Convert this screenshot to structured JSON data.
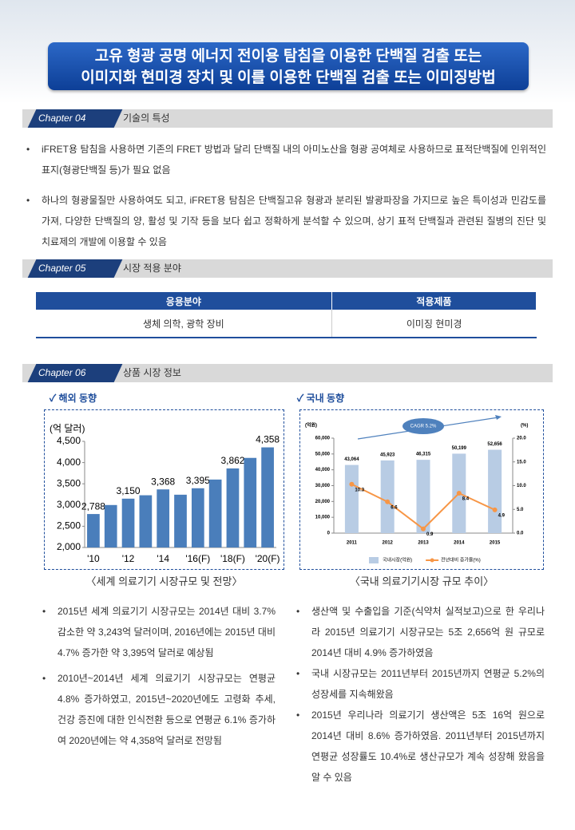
{
  "header": {
    "title_lines": [
      "고유 형광 공명 에너지 전이용 탐침을 이용한 단백질 검출 또는",
      "이미지화 현미경 장치 및 이를 이용한 단백질 검출 또는 이미징방법"
    ]
  },
  "sections": [
    {
      "chapter": "Chapter 04",
      "heading": "기술의 특성",
      "bullets": [
        "iFRET용 탐침을 사용하면 기존의 FRET 방법과 달리 단백질 내의 아미노산을 형광 공여체로 사용하므로 표적단백질에 인위적인 표지(형광단백질 등)가 필요 없음",
        "하나의 형광물질만 사용하여도 되고, iFRET용 탐침은 단백질고유 형광과 분리된 발광파장을 가지므로 높은 특이성과 민감도를 가져, 다양한 단백질의 양, 활성 및 기작 등을 보다 쉽고 정확하게 분석할 수 있으며, 상기 표적 단백질과 관련된 질병의 진단 및 치료제의 개발에 이용할 수 있음"
      ]
    },
    {
      "chapter": "Chapter 05",
      "heading": "시장 적용 분야",
      "table": {
        "headers": [
          "응용분야",
          "적용제품"
        ],
        "rows": [
          [
            "생체 의학, 광학 장비",
            "이미징 현미경"
          ]
        ]
      }
    },
    {
      "chapter": "Chapter 06",
      "heading": "상품 시장 정보",
      "overseas": {
        "label": "해외 동향",
        "caption": "〈세계 의료기기 시장규모 및 전망〉",
        "bullets": [
          "2015년 세계 의료기기 시장규모는 2014년 대비 3.7% 감소한 약 3,243억 달러이며, 2016년에는 2015년 대비 4.7% 증가한 약 3,395억 달러로 예상됨",
          "2010년~2014년 세계 의료기기 시장규모는 연평균 4.8% 증가하였고, 2015년~2020년에도 고령화 추세, 건강 증진에 대한 인식전환 등으로 연평균 6.1% 증가하여 2020년에는 약 4,358억 달러로 전망됨"
        ]
      },
      "domestic": {
        "label": "국내 동향",
        "caption": "〈국내 의료기기시장 규모 추이〉",
        "bullets": [
          "생산액 및 수출입을 기준(식약처 실적보고)으로 한 우리나라 2015년 의료기기 시장규모는 5조 2,656억 원 규모로 2014년 대비 4.9% 증가하였음",
          "국내 시장규모는 2011년부터 2015년까지 연평균 5.2%의 성장세를 지속해왔음",
          "2015년 우리나라 의료기기 생산액은 5조 16억 원으로 2014년 대비 8.6% 증가하였음. 2011년부터 2015년까지 연평균 성장률도 10.4%로 생산규모가 계속 성장해 왔음을 알 수 있음"
        ]
      }
    }
  ],
  "chart_data": [
    {
      "type": "bar",
      "y_label": "(억 달러)",
      "categories": [
        "'10",
        null,
        "'12",
        null,
        "'14",
        null,
        "'16(F)",
        null,
        "'18(F)",
        null,
        "'20(F)"
      ],
      "values": [
        2788,
        3000,
        3150,
        3230,
        3368,
        3243,
        3395,
        3600,
        3862,
        4110,
        4358
      ],
      "value_labels": [
        "2,788",
        null,
        "3,150",
        null,
        "3,368",
        null,
        "3,395",
        null,
        "3,862",
        null,
        "4,358"
      ],
      "color": "#4a7ebb",
      "ylim": [
        2000,
        4500
      ],
      "yticks": [
        {
          "value": 2000,
          "label": "2,000"
        },
        {
          "value": 2500,
          "label": "2,500"
        },
        {
          "value": 3000,
          "label": "3,000"
        },
        {
          "value": 3500,
          "label": "3,500"
        },
        {
          "value": 4000,
          "label": "4,000"
        },
        {
          "value": 4500,
          "label": "4,500"
        }
      ]
    },
    {
      "type": "bar",
      "y_label": "(억원)",
      "y2_label": "(%)",
      "annotation": "CAGR 5.2%",
      "categories": [
        "2011",
        "2012",
        "2013",
        "2014",
        "2015"
      ],
      "series": [
        {
          "name": "국내시장(억원)",
          "color": "#b8cce4",
          "values": [
            43064,
            45923,
            46315,
            50199,
            52656
          ],
          "value_labels": [
            "43,064",
            "45,923",
            "46,315",
            "50,199",
            "52,656"
          ]
        },
        {
          "name": "전년대비 증가율(%)",
          "color": "#f79646",
          "type": "line",
          "axis": "y2",
          "values": [
            10.3,
            6.6,
            0.9,
            8.4,
            4.9
          ]
        }
      ],
      "ylim": [
        0,
        60000
      ],
      "yticks": [
        0,
        {
          "value": 10000,
          "label": "10,000"
        },
        {
          "value": 20000,
          "label": "20,000"
        },
        {
          "value": 30000,
          "label": "30,000"
        },
        {
          "value": 40000,
          "label": "40,000"
        },
        {
          "value": 50000,
          "label": "50,000"
        },
        {
          "value": 60000,
          "label": "60,000"
        }
      ],
      "y2lim": [
        0,
        20
      ],
      "y2ticks": [
        {
          "value": 0,
          "label": "0.0"
        },
        {
          "value": 5,
          "label": "5.0"
        },
        {
          "value": 10,
          "label": "10.0"
        },
        {
          "value": 15,
          "label": "15.0"
        },
        {
          "value": 20,
          "label": "20.0"
        }
      ]
    }
  ]
}
